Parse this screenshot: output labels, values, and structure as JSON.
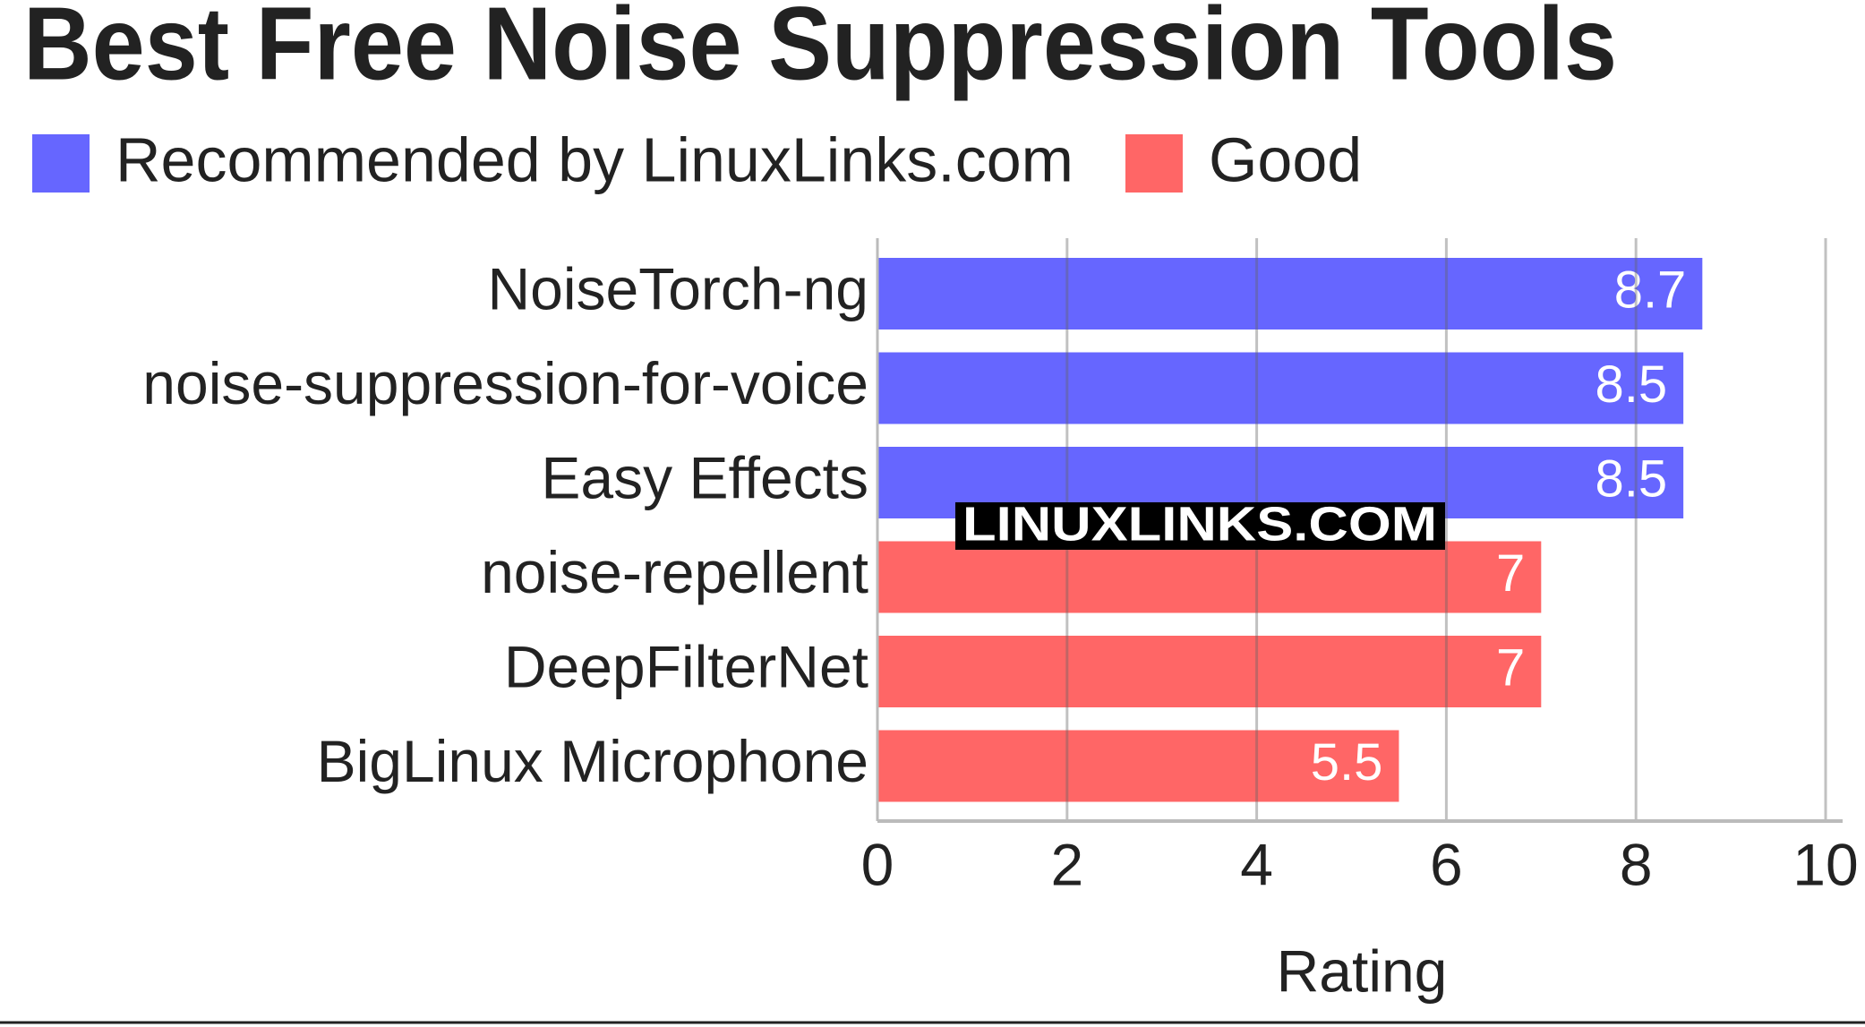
{
  "chart_data": {
    "type": "hbar",
    "title": "Best Free Noise Suppression Tools",
    "categories": [
      "NoiseTorch-ng",
      "noise-suppression-for-voice",
      "Easy Effects",
      "noise-repellent",
      "DeepFilterNet",
      "BigLinux Microphone"
    ],
    "series": [
      {
        "name": "Recommended by LinuxLinks.com",
        "color": "#6666ff",
        "values": [
          8.7,
          8.5,
          8.5,
          null,
          null,
          null
        ]
      },
      {
        "name": "Good",
        "color": "#ff6666",
        "values": [
          null,
          null,
          null,
          7,
          7,
          5.5
        ]
      }
    ],
    "xlabel": "Rating",
    "xlim": [
      0,
      10
    ],
    "xticks": [
      0,
      2,
      4,
      6,
      8,
      10
    ],
    "grid": true,
    "watermark": "LINUXLINKS.COM"
  }
}
